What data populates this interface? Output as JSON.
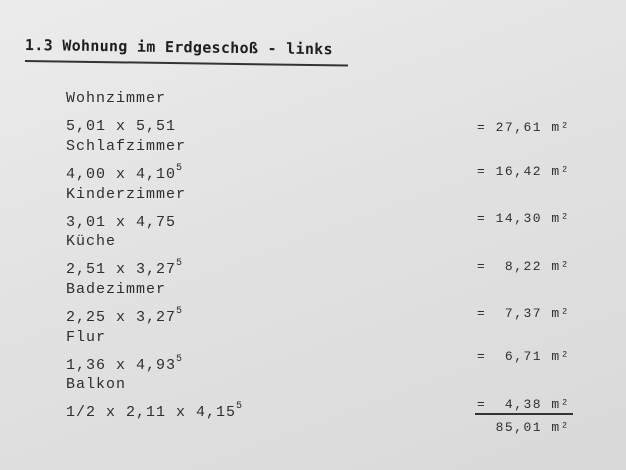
{
  "title": "1.3 Wohnung im Erdgeschoß - links",
  "rooms": [
    {
      "name": "Wohnzimmer",
      "dims": "5,01 x 5,51",
      "sup": "",
      "area": "= 27,61 m²"
    },
    {
      "name": "Schlafzimmer",
      "dims": "4,00 x 4,10",
      "sup": "5",
      "area": "= 16,42 m²"
    },
    {
      "name": "Kinderzimmer",
      "dims": "3,01 x 4,75",
      "sup": "",
      "area": "= 14,30 m²"
    },
    {
      "name": "Küche",
      "dims": "2,51 x 3,27",
      "sup": "5",
      "area": "=  8,22 m²"
    },
    {
      "name": "Badezimmer",
      "dims": "2,25 x 3,27",
      "sup": "5",
      "area": "=  7,37 m²"
    },
    {
      "name": "Flur",
      "dims": "1,36 x 4,93",
      "sup": "5",
      "area": "=  6,71 m²"
    },
    {
      "name": "Balkon",
      "dims": "1/2 x 2,11 x 4,15",
      "sup": "5",
      "area": "=  4,38 m²"
    }
  ],
  "total": "85,01 m²"
}
